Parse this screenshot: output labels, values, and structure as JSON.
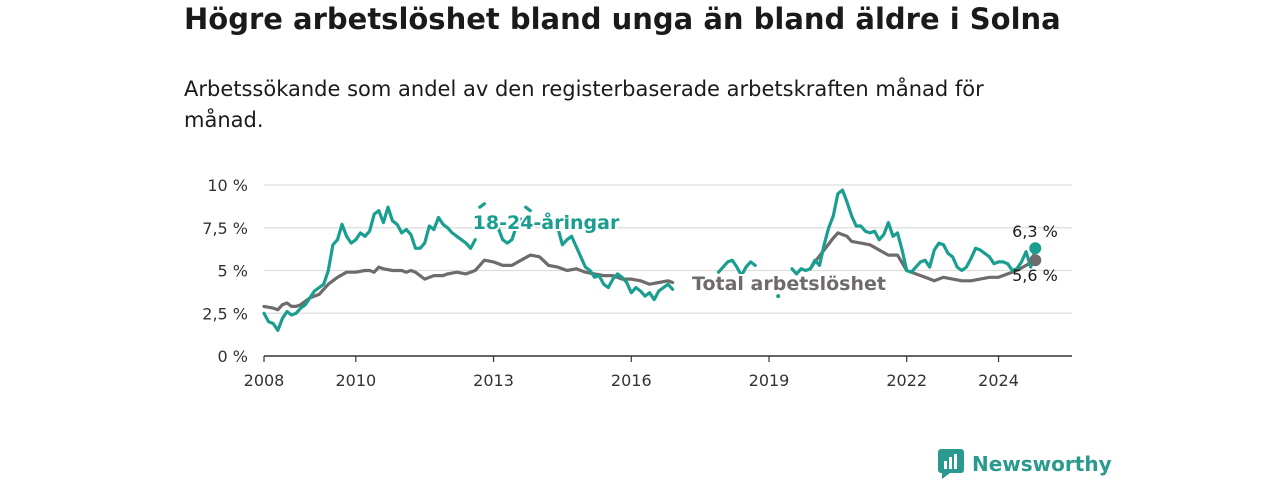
{
  "title": "Högre arbetslöshet bland unga än bland äldre i Solna",
  "subtitle": "Arbetssökande som andel av den registerbaserade arbetskraften månad för månad.",
  "brand": {
    "name": "Newsworthy"
  },
  "colors": {
    "youth": "#1a9e8f",
    "total": "#6f6b6c",
    "grid": "#dddddd",
    "axis": "#333333",
    "brand": "#2a9a8e"
  },
  "chart_data": {
    "type": "line",
    "title": "Högre arbetslöshet bland unga än bland äldre i Solna",
    "xlabel": "",
    "ylabel": "",
    "xlim": [
      2008,
      2025.6
    ],
    "ylim": [
      0,
      10
    ],
    "x_ticks": [
      2008,
      2010,
      2013,
      2016,
      2019,
      2022,
      2024
    ],
    "x_tick_labels": [
      "2008",
      "2010",
      "2013",
      "2016",
      "2019",
      "2022",
      "2024"
    ],
    "y_ticks": [
      0,
      2.5,
      5,
      7.5,
      10
    ],
    "y_tick_labels": [
      "0 %",
      "2,5 %",
      "5 %",
      "7,5 %",
      "10 %"
    ],
    "series": [
      {
        "name": "18-24-åringar",
        "label": "18-24-åringar",
        "end_label": "6,3 %",
        "points": [
          [
            2008.0,
            2.5
          ],
          [
            2008.1,
            2.0
          ],
          [
            2008.2,
            1.9
          ],
          [
            2008.3,
            1.5
          ],
          [
            2008.4,
            2.2
          ],
          [
            2008.5,
            2.6
          ],
          [
            2008.6,
            2.4
          ],
          [
            2008.7,
            2.5
          ],
          [
            2008.8,
            2.8
          ],
          [
            2008.9,
            3.0
          ],
          [
            2009.0,
            3.4
          ],
          [
            2009.1,
            3.8
          ],
          [
            2009.2,
            4.0
          ],
          [
            2009.3,
            4.2
          ],
          [
            2009.4,
            5.0
          ],
          [
            2009.5,
            6.5
          ],
          [
            2009.6,
            6.8
          ],
          [
            2009.7,
            7.7
          ],
          [
            2009.8,
            7.0
          ],
          [
            2009.9,
            6.6
          ],
          [
            2010.0,
            6.8
          ],
          [
            2010.1,
            7.2
          ],
          [
            2010.2,
            7.0
          ],
          [
            2010.3,
            7.3
          ],
          [
            2010.4,
            8.3
          ],
          [
            2010.5,
            8.5
          ],
          [
            2010.6,
            7.8
          ],
          [
            2010.7,
            8.7
          ],
          [
            2010.8,
            7.9
          ],
          [
            2010.9,
            7.7
          ],
          [
            2011.0,
            7.2
          ],
          [
            2011.1,
            7.4
          ],
          [
            2011.2,
            7.1
          ],
          [
            2011.3,
            6.3
          ],
          [
            2011.4,
            6.3
          ],
          [
            2011.5,
            6.6
          ],
          [
            2011.6,
            7.6
          ],
          [
            2011.7,
            7.4
          ],
          [
            2011.8,
            8.1
          ],
          [
            2011.9,
            7.7
          ],
          [
            2012.0,
            7.5
          ],
          [
            2012.1,
            7.2
          ],
          [
            2012.2,
            7.0
          ],
          [
            2012.3,
            6.8
          ],
          [
            2012.4,
            6.6
          ],
          [
            2012.5,
            6.3
          ],
          [
            2012.6,
            6.8
          ]
        ],
        "points_2": [
          [
            2012.7,
            8.7
          ],
          [
            2012.8,
            8.9
          ]
        ],
        "points_3": [
          [
            2013.1,
            7.5
          ],
          [
            2013.2,
            6.8
          ],
          [
            2013.3,
            6.6
          ],
          [
            2013.4,
            6.8
          ],
          [
            2013.5,
            7.6
          ],
          [
            2013.6,
            8.0
          ]
        ],
        "points_4": [
          [
            2013.7,
            8.7
          ],
          [
            2013.8,
            8.5
          ]
        ],
        "points_5": [
          [
            2014.4,
            7.5
          ],
          [
            2014.5,
            6.5
          ],
          [
            2014.6,
            6.8
          ],
          [
            2014.7,
            7.0
          ],
          [
            2014.8,
            6.4
          ],
          [
            2014.9,
            5.8
          ],
          [
            2015.0,
            5.2
          ],
          [
            2015.1,
            5.0
          ],
          [
            2015.2,
            4.6
          ],
          [
            2015.3,
            4.7
          ],
          [
            2015.4,
            4.2
          ],
          [
            2015.5,
            4.0
          ],
          [
            2015.6,
            4.5
          ],
          [
            2015.7,
            4.8
          ],
          [
            2015.8,
            4.6
          ],
          [
            2015.9,
            4.3
          ],
          [
            2016.0,
            3.7
          ],
          [
            2016.1,
            4.0
          ],
          [
            2016.2,
            3.8
          ],
          [
            2016.3,
            3.5
          ],
          [
            2016.4,
            3.7
          ],
          [
            2016.5,
            3.3
          ],
          [
            2016.6,
            3.8
          ],
          [
            2016.7,
            4.0
          ],
          [
            2016.8,
            4.2
          ],
          [
            2016.9,
            3.9
          ]
        ],
        "points_6": [
          [
            2017.9,
            4.9
          ],
          [
            2018.0,
            5.2
          ],
          [
            2018.1,
            5.5
          ],
          [
            2018.2,
            5.6
          ],
          [
            2018.3,
            5.2
          ],
          [
            2018.4,
            4.7
          ],
          [
            2018.5,
            5.2
          ],
          [
            2018.6,
            5.5
          ],
          [
            2018.7,
            5.3
          ]
        ],
        "points_7": [
          [
            2019.2,
            3.5
          ]
        ],
        "points_8": [
          [
            2019.5,
            5.1
          ],
          [
            2019.6,
            4.8
          ],
          [
            2019.7,
            5.1
          ],
          [
            2019.8,
            5.0
          ],
          [
            2019.9,
            5.1
          ],
          [
            2020.0,
            5.6
          ],
          [
            2020.1,
            5.3
          ],
          [
            2020.2,
            6.5
          ],
          [
            2020.3,
            7.5
          ],
          [
            2020.4,
            8.2
          ],
          [
            2020.5,
            9.5
          ],
          [
            2020.6,
            9.7
          ],
          [
            2020.7,
            9.0
          ],
          [
            2020.8,
            8.2
          ],
          [
            2020.9,
            7.6
          ],
          [
            2021.0,
            7.6
          ],
          [
            2021.1,
            7.3
          ],
          [
            2021.2,
            7.2
          ],
          [
            2021.3,
            7.3
          ],
          [
            2021.4,
            6.8
          ],
          [
            2021.5,
            7.1
          ],
          [
            2021.6,
            7.8
          ],
          [
            2021.7,
            7.0
          ],
          [
            2021.8,
            7.2
          ],
          [
            2021.9,
            6.2
          ],
          [
            2022.0,
            5.0
          ],
          [
            2022.1,
            4.9
          ],
          [
            2022.2,
            5.2
          ],
          [
            2022.3,
            5.5
          ],
          [
            2022.4,
            5.6
          ],
          [
            2022.5,
            5.2
          ],
          [
            2022.6,
            6.2
          ],
          [
            2022.7,
            6.6
          ],
          [
            2022.8,
            6.5
          ],
          [
            2022.9,
            6.0
          ],
          [
            2023.0,
            5.8
          ],
          [
            2023.1,
            5.2
          ],
          [
            2023.2,
            5.0
          ],
          [
            2023.3,
            5.2
          ],
          [
            2023.4,
            5.7
          ],
          [
            2023.5,
            6.3
          ],
          [
            2023.6,
            6.2
          ],
          [
            2023.7,
            6.0
          ],
          [
            2023.8,
            5.8
          ],
          [
            2023.9,
            5.4
          ],
          [
            2024.0,
            5.5
          ],
          [
            2024.1,
            5.5
          ],
          [
            2024.2,
            5.4
          ],
          [
            2024.3,
            5.0
          ],
          [
            2024.4,
            5.1
          ],
          [
            2024.5,
            5.5
          ],
          [
            2024.6,
            6.1
          ],
          [
            2024.7,
            5.2
          ],
          [
            2024.8,
            6.3
          ]
        ]
      },
      {
        "name": "Total arbetslöshet",
        "label": "Total arbetslöshet",
        "end_label": "5,6 %",
        "points": [
          [
            2008.0,
            2.9
          ],
          [
            2008.2,
            2.8
          ],
          [
            2008.3,
            2.7
          ],
          [
            2008.4,
            3.0
          ],
          [
            2008.5,
            3.1
          ],
          [
            2008.6,
            2.9
          ],
          [
            2008.7,
            2.9
          ],
          [
            2008.8,
            3.0
          ],
          [
            2008.9,
            3.2
          ],
          [
            2009.0,
            3.4
          ],
          [
            2009.2,
            3.6
          ],
          [
            2009.4,
            4.2
          ],
          [
            2009.6,
            4.6
          ],
          [
            2009.8,
            4.9
          ],
          [
            2010.0,
            4.9
          ],
          [
            2010.2,
            5.0
          ],
          [
            2010.3,
            5.0
          ],
          [
            2010.4,
            4.9
          ],
          [
            2010.5,
            5.2
          ],
          [
            2010.6,
            5.1
          ],
          [
            2010.8,
            5.0
          ],
          [
            2011.0,
            5.0
          ],
          [
            2011.1,
            4.9
          ],
          [
            2011.2,
            5.0
          ],
          [
            2011.3,
            4.9
          ],
          [
            2011.5,
            4.5
          ],
          [
            2011.7,
            4.7
          ],
          [
            2011.9,
            4.7
          ],
          [
            2012.0,
            4.8
          ],
          [
            2012.2,
            4.9
          ],
          [
            2012.4,
            4.8
          ],
          [
            2012.6,
            5.0
          ],
          [
            2012.8,
            5.6
          ],
          [
            2013.0,
            5.5
          ],
          [
            2013.2,
            5.3
          ],
          [
            2013.4,
            5.3
          ],
          [
            2013.6,
            5.6
          ],
          [
            2013.8,
            5.9
          ],
          [
            2014.0,
            5.8
          ],
          [
            2014.2,
            5.3
          ],
          [
            2014.4,
            5.2
          ],
          [
            2014.6,
            5.0
          ],
          [
            2014.8,
            5.1
          ],
          [
            2015.0,
            4.9
          ],
          [
            2015.2,
            4.8
          ],
          [
            2015.4,
            4.7
          ],
          [
            2015.6,
            4.7
          ],
          [
            2015.8,
            4.5
          ],
          [
            2016.0,
            4.5
          ],
          [
            2016.2,
            4.4
          ],
          [
            2016.4,
            4.2
          ],
          [
            2016.6,
            4.3
          ],
          [
            2016.8,
            4.4
          ],
          [
            2016.9,
            4.3
          ]
        ],
        "points_2": [
          [
            2019.9,
            5.1
          ],
          [
            2020.0,
            5.5
          ],
          [
            2020.2,
            6.2
          ],
          [
            2020.4,
            6.9
          ],
          [
            2020.5,
            7.2
          ],
          [
            2020.7,
            7.0
          ],
          [
            2020.8,
            6.7
          ],
          [
            2021.0,
            6.6
          ],
          [
            2021.2,
            6.5
          ],
          [
            2021.4,
            6.2
          ],
          [
            2021.6,
            5.9
          ],
          [
            2021.8,
            5.9
          ],
          [
            2022.0,
            5.0
          ],
          [
            2022.2,
            4.8
          ],
          [
            2022.4,
            4.6
          ],
          [
            2022.6,
            4.4
          ],
          [
            2022.8,
            4.6
          ],
          [
            2023.0,
            4.5
          ],
          [
            2023.2,
            4.4
          ],
          [
            2023.4,
            4.4
          ],
          [
            2023.6,
            4.5
          ],
          [
            2023.8,
            4.6
          ],
          [
            2024.0,
            4.6
          ],
          [
            2024.2,
            4.8
          ],
          [
            2024.4,
            5.0
          ],
          [
            2024.6,
            5.3
          ],
          [
            2024.8,
            5.6
          ]
        ]
      }
    ]
  }
}
